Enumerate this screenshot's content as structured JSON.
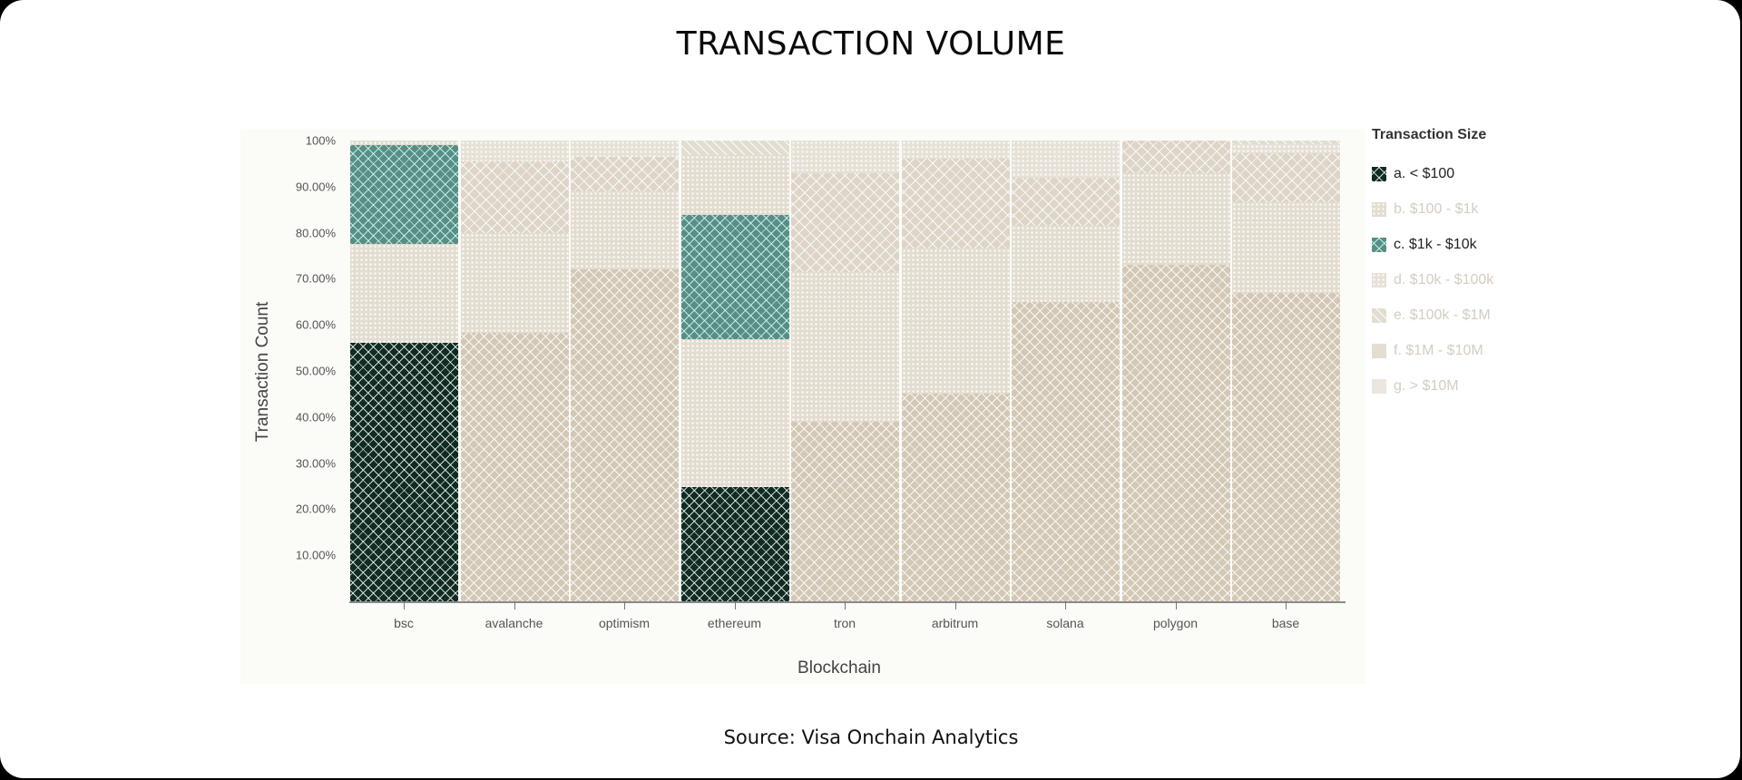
{
  "title": "TRANSACTION VOLUME",
  "source": "Source: Visa Onchain Analytics",
  "chart_data": {
    "type": "bar",
    "stacked": true,
    "normalized": true,
    "title": "TRANSACTION VOLUME",
    "xlabel": "Blockchain",
    "ylabel": "Transaction Count",
    "ylim": [
      0,
      100
    ],
    "y_ticks": [
      "100%",
      "90.00%",
      "80.00%",
      "70.00%",
      "60.00%",
      "50.00%",
      "40.00%",
      "30.00%",
      "20.00%",
      "10.00%"
    ],
    "categories": [
      "bsc",
      "avalanche",
      "optimism",
      "ethereum",
      "tron",
      "arbitrum",
      "solana",
      "polygon",
      "base"
    ],
    "legend_title": "Transaction Size",
    "legend_position": "right",
    "series": [
      {
        "name": "a. < $100",
        "values": [
          56.1,
          58.3,
          72.0,
          24.8,
          39.0,
          45.0,
          65.0,
          73.0,
          67.0
        ]
      },
      {
        "name": "b. $100 - $1k",
        "values": [
          21.5,
          21.7,
          17.0,
          32.0,
          32.5,
          31.5,
          16.5,
          20.0,
          19.7
        ]
      },
      {
        "name": "c. $1k - $10k",
        "values": [
          21.4,
          15.5,
          7.5,
          27.0,
          21.5,
          19.6,
          10.5,
          7.0,
          10.6
        ]
      },
      {
        "name": "d. $10k - $100k",
        "values": [
          1.0,
          4.5,
          3.5,
          13.0,
          7.0,
          3.9,
          8.0,
          0,
          2.0
        ]
      },
      {
        "name": "e. $100k - $1M",
        "values": [
          0,
          0,
          0,
          3.2,
          0,
          0,
          0,
          0,
          0.7
        ]
      },
      {
        "name": "f. $1M - $10M",
        "values": [
          0,
          0,
          0,
          0,
          0,
          0,
          0,
          0,
          0
        ]
      },
      {
        "name": "g. > $10M",
        "values": [
          0,
          0,
          0,
          0,
          0,
          0,
          0,
          0,
          0
        ]
      }
    ],
    "highlighted_series": [
      "a. < $100",
      "c. $1k - $10k"
    ],
    "highlighted_categories": [
      "bsc",
      "ethereum"
    ],
    "grid": false
  },
  "legend": {
    "title": "Transaction Size",
    "items": [
      {
        "label": "a. < $100"
      },
      {
        "label": "b. $100 - $1k"
      },
      {
        "label": "c. $1k - $10k"
      },
      {
        "label": "d. $10k - $100k"
      },
      {
        "label": "e. $100k - $1M"
      },
      {
        "label": "f. $1M - $10M"
      },
      {
        "label": "g. > $10M"
      }
    ]
  },
  "colors": {
    "series_a_highlight": "#0f2b22",
    "series_c_highlight": "#5b8d84",
    "muted_beige": "#d3c8b5"
  }
}
